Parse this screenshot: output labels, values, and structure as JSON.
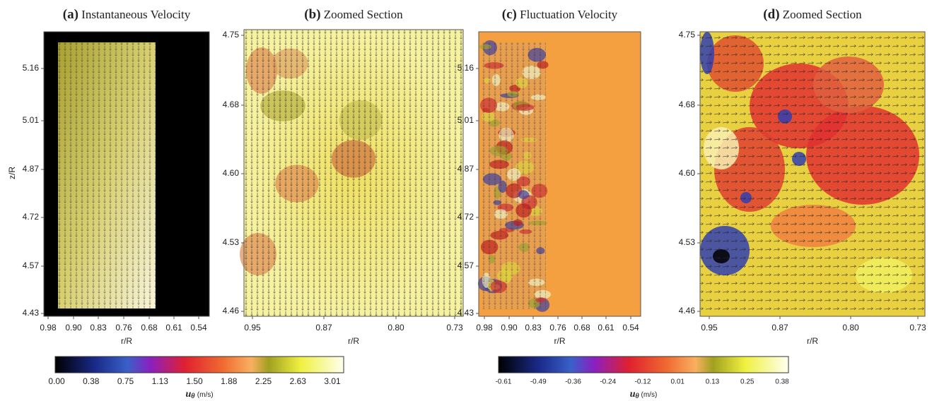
{
  "figure": {
    "ylabel": "z/R",
    "panels": [
      {
        "label": "(a)",
        "title": "Instantaneous Velocity",
        "xlabel": "r/R",
        "yticks": [
          "5.16",
          "5.01",
          "4.87",
          "4.72",
          "4.57",
          "4.43"
        ],
        "xticks": [
          "0.98",
          "0.90",
          "0.83",
          "0.76",
          "0.68",
          "0.61",
          "0.54"
        ]
      },
      {
        "label": "(b)",
        "title": "Zoomed Section",
        "xlabel": "r/R",
        "yticks": [
          "4.75",
          "4.68",
          "4.60",
          "4.53",
          "4.46"
        ],
        "xticks": [
          "0.95",
          "0.87",
          "0.80",
          "0.73"
        ]
      },
      {
        "label": "(c)",
        "title": "Fluctuation Velocity",
        "xlabel": "r/R",
        "yticks": [
          "5.16",
          "5.01",
          "4.87",
          "4.72",
          "4.57",
          "4.43"
        ],
        "xticks": [
          "0.98",
          "0.90",
          "0.83",
          "0.76",
          "0.68",
          "0.61",
          "0.54"
        ]
      },
      {
        "label": "(d)",
        "title": "Zoomed Section",
        "xlabel": "r/R",
        "yticks": [
          "4.75",
          "4.68",
          "4.60",
          "4.53",
          "4.46"
        ],
        "xticks": [
          "0.95",
          "0.87",
          "0.80",
          "0.73"
        ]
      }
    ],
    "colorbars": [
      {
        "ticks": [
          "0.00",
          "0.38",
          "0.75",
          "1.13",
          "1.50",
          "1.88",
          "2.25",
          "2.63",
          "3.01"
        ],
        "symbol": "u",
        "subscript": "θ",
        "unit": "(m/s)"
      },
      {
        "ticks": [
          "-0.61",
          "-0.49",
          "-0.36",
          "-0.24",
          "-0.12",
          "0.01",
          "0.13",
          "0.25",
          "0.38"
        ],
        "symbol": "u",
        "subscript": "θ",
        "unit": "(m/s)"
      }
    ]
  }
}
